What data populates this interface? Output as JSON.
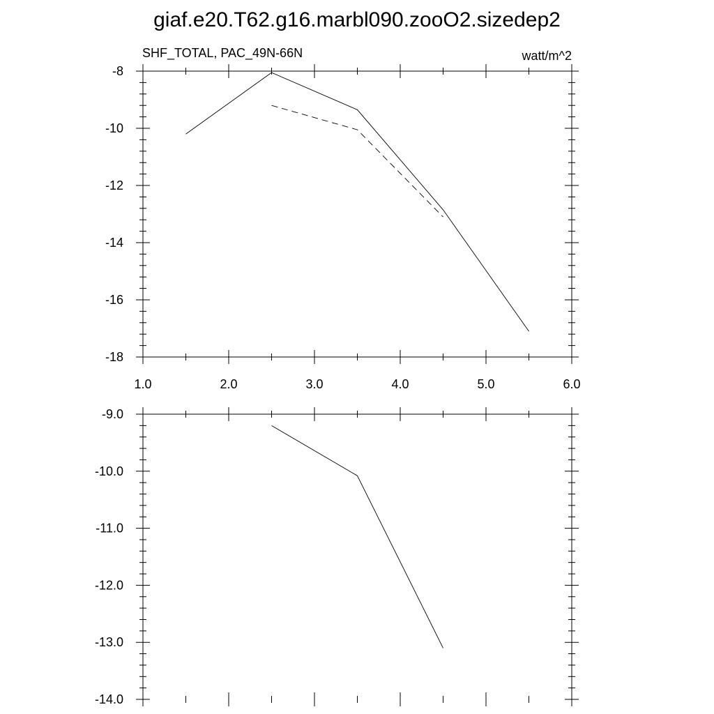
{
  "title": "giaf.e20.T62.g16.marbl090.zooO2.sizedep2",
  "chart_data": [
    {
      "type": "line",
      "left_label": "SHF_TOTAL, PAC_49N-66N",
      "right_label": "watt/m^2",
      "xlim": [
        1.0,
        6.0
      ],
      "ylim": [
        -18,
        -8
      ],
      "x_ticks": [
        "1.0",
        "2.0",
        "3.0",
        "4.0",
        "5.0",
        "6.0"
      ],
      "y_ticks": [
        "-8",
        "-10",
        "-12",
        "-14",
        "-16",
        "-18"
      ],
      "series": [
        {
          "style": "solid",
          "x": [
            1.5,
            2.5,
            3.5,
            4.5,
            5.5
          ],
          "y": [
            -10.2,
            -8.05,
            -9.35,
            -12.85,
            -17.1
          ]
        },
        {
          "style": "dashed",
          "x": [
            2.5,
            3.5,
            4.5
          ],
          "y": [
            -9.2,
            -10.05,
            -13.1
          ]
        }
      ]
    },
    {
      "type": "line",
      "xlim": [
        1.0,
        6.0
      ],
      "ylim": [
        -14.0,
        -9.0
      ],
      "y_ticks": [
        "-9.0",
        "-10.0",
        "-11.0",
        "-12.0",
        "-13.0",
        "-14.0"
      ],
      "series": [
        {
          "style": "solid",
          "x": [
            2.5,
            3.5,
            4.5
          ],
          "y": [
            -9.2,
            -10.08,
            -13.1
          ]
        }
      ]
    }
  ]
}
